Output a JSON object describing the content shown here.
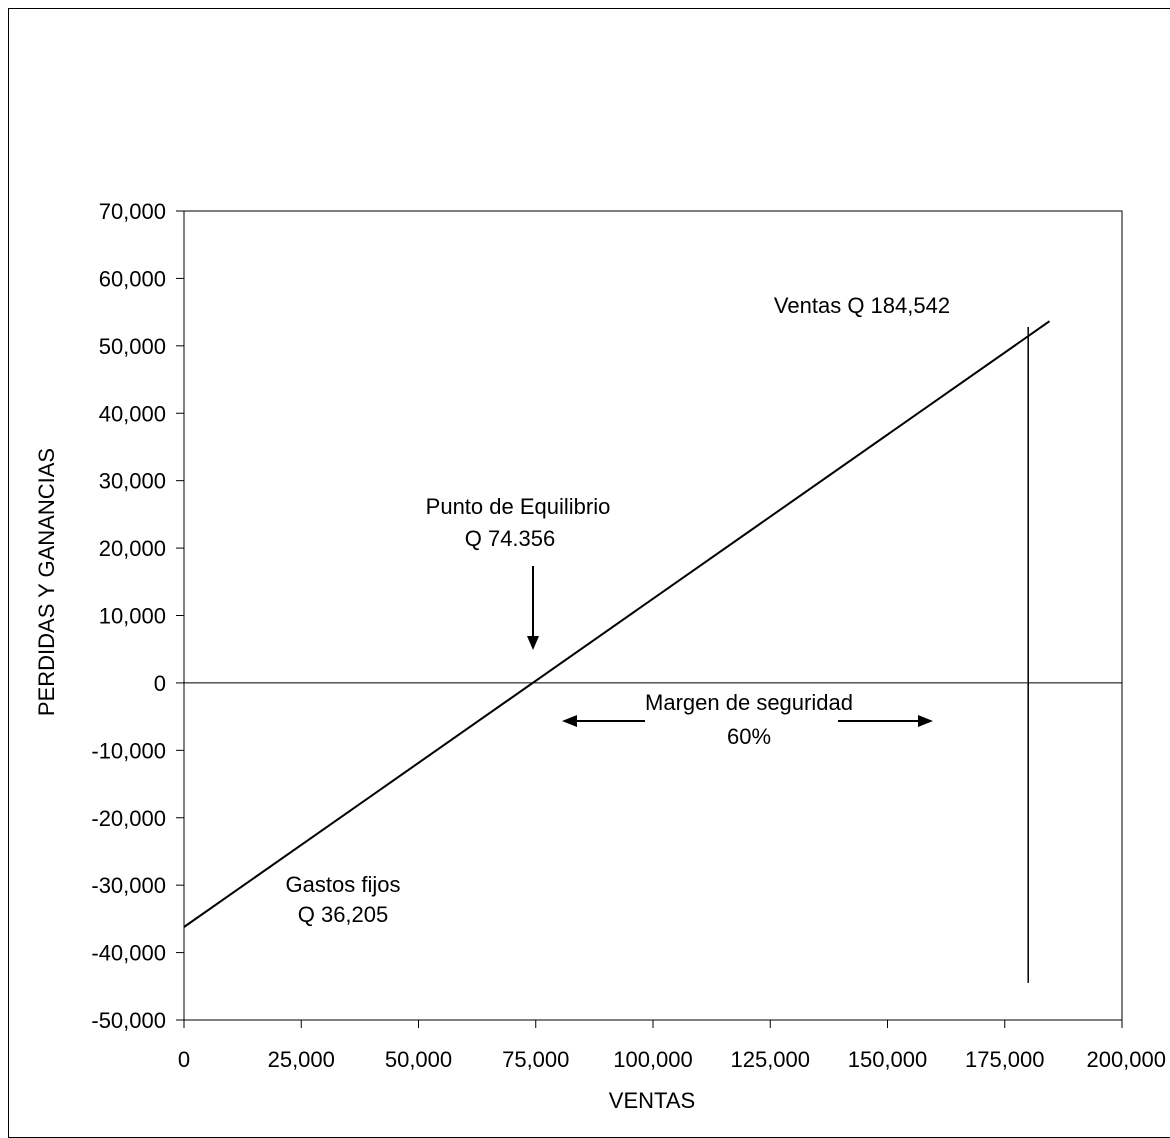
{
  "chart_data": {
    "type": "line",
    "xlabel": "VENTAS",
    "ylabel": "PERDIDAS Y GANANCIAS",
    "xlim": [
      0,
      200000
    ],
    "ylim": [
      -50000,
      70000
    ],
    "x_ticks": [
      0,
      25000,
      50000,
      75000,
      100000,
      125000,
      150000,
      175000,
      200000
    ],
    "x_tick_labels": [
      "0",
      "25,000",
      "50,000",
      "75,000",
      "100,000",
      "125,000",
      "150,000",
      "175,000",
      "200,000"
    ],
    "y_ticks": [
      70000,
      60000,
      50000,
      40000,
      30000,
      20000,
      10000,
      0,
      -10000,
      -20000,
      -30000,
      -40000,
      -50000
    ],
    "y_tick_labels": [
      "70,000",
      "60,000",
      "50,000",
      "40,000",
      "30,000",
      "20,000",
      "10,000",
      "0",
      "-10,000",
      "-20,000",
      "-30,000",
      "-40,000",
      "-50,000"
    ],
    "grid": false,
    "legend": false,
    "series": [
      {
        "x": [
          0,
          184542
        ],
        "y": [
          -36205,
          53650
        ],
        "color": "#000000"
      }
    ],
    "reference_lines": {
      "horizontal_at_y": 0,
      "vertical": {
        "x": 180000,
        "y_range": [
          -44500,
          52800
        ]
      }
    },
    "annotations": {
      "breakeven_line1": "Punto de Equilibrio",
      "breakeven_line2": "Q 74.356",
      "breakeven_x": 74356,
      "margin_line1": "Margen de seguridad",
      "margin_line2": "60%",
      "fixed_costs_line1": "Gastos fijos",
      "fixed_costs_line2": "Q 36,205",
      "sales_label": "Ventas Q 184,542"
    }
  }
}
